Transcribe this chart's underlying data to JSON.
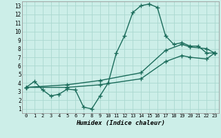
{
  "xlabel": "Humidex (Indice chaleur)",
  "bg_color": "#cceee8",
  "grid_color": "#aad8d0",
  "line_color": "#1a6b5a",
  "xlim": [
    -0.5,
    23.5
  ],
  "ylim": [
    0.5,
    13.5
  ],
  "xticks": [
    0,
    1,
    2,
    3,
    4,
    5,
    6,
    7,
    8,
    9,
    10,
    11,
    12,
    13,
    14,
    15,
    16,
    17,
    18,
    19,
    20,
    21,
    22,
    23
  ],
  "yticks": [
    1,
    2,
    3,
    4,
    5,
    6,
    7,
    8,
    9,
    10,
    11,
    12,
    13
  ],
  "line1_x": [
    0,
    1,
    2,
    3,
    4,
    5,
    6,
    7,
    8,
    9,
    10,
    11,
    12,
    13,
    14,
    15,
    16,
    17,
    18,
    19,
    20,
    21,
    22,
    23
  ],
  "line1_y": [
    3.5,
    4.2,
    3.2,
    2.5,
    2.7,
    3.3,
    3.2,
    1.2,
    1.0,
    2.5,
    4.0,
    7.5,
    9.5,
    12.2,
    13.0,
    13.2,
    12.8,
    9.5,
    8.5,
    8.7,
    8.3,
    8.3,
    7.5,
    7.5
  ],
  "line2_x": [
    0,
    5,
    9,
    14,
    17,
    19,
    20,
    22,
    23
  ],
  "line2_y": [
    3.5,
    3.8,
    4.3,
    5.2,
    7.8,
    8.5,
    8.2,
    8.0,
    7.5
  ],
  "line3_x": [
    0,
    5,
    9,
    14,
    17,
    19,
    20,
    22,
    23
  ],
  "line3_y": [
    3.5,
    3.5,
    3.8,
    4.5,
    6.5,
    7.2,
    7.0,
    6.8,
    7.5
  ],
  "marker": "+",
  "markersize": 4,
  "linewidth": 1.0
}
